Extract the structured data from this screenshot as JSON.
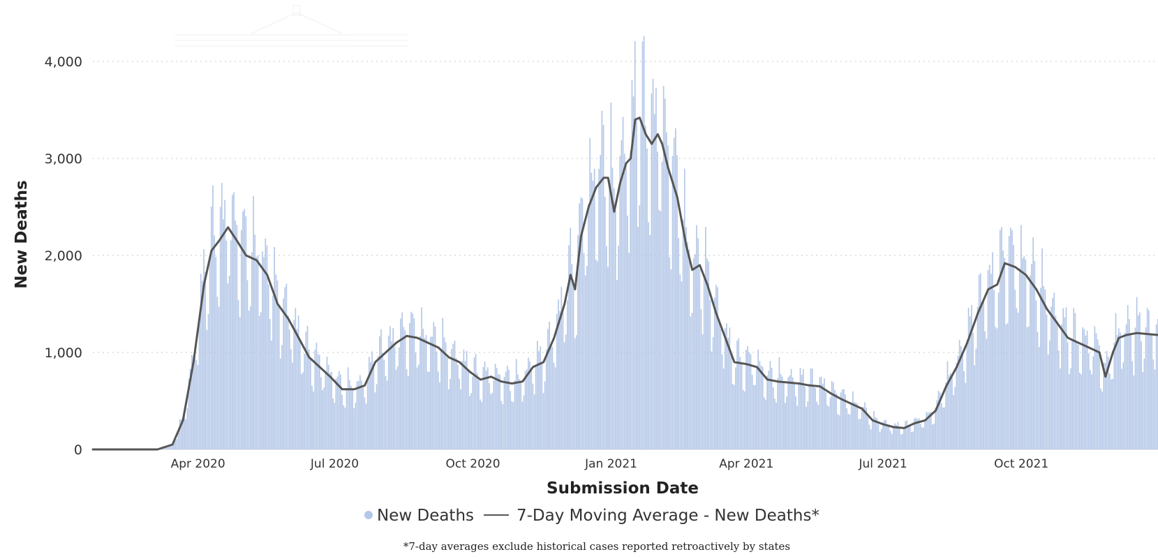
{
  "chart_data": {
    "type": "bar",
    "x_axis_type": "date",
    "xlabel": "Submission Date",
    "ylabel": "New Deaths",
    "ylim": [
      0,
      4000
    ],
    "xlim": [
      "2020-01-22",
      "2021-12-31"
    ],
    "y_ticks": [
      {
        "value": 0,
        "label": "0"
      },
      {
        "value": 1000,
        "label": "1,000"
      },
      {
        "value": 2000,
        "label": "2,000"
      },
      {
        "value": 3000,
        "label": "3,000"
      },
      {
        "value": 4000,
        "label": "4,000"
      }
    ],
    "x_ticks": [
      {
        "date": "2020-04-01",
        "label": "Apr 2020"
      },
      {
        "date": "2020-07-01",
        "label": "Jul 2020"
      },
      {
        "date": "2020-10-01",
        "label": "Oct 2020"
      },
      {
        "date": "2021-01-01",
        "label": "Jan 2021"
      },
      {
        "date": "2021-04-01",
        "label": "Apr 2021"
      },
      {
        "date": "2021-07-01",
        "label": "Jul 2021"
      },
      {
        "date": "2021-10-01",
        "label": "Oct 2021"
      }
    ],
    "grid": "horizontal dotted",
    "legend_position": "bottom",
    "series": [
      {
        "name": "New Deaths",
        "kind": "daily bars",
        "color": "#b4c7e7",
        "values_description": "daily values approximately follow the moving average with weekly oscillation"
      },
      {
        "name": "7-Day Moving Average - New Deaths*",
        "kind": "line",
        "color": "#555555",
        "points": [
          [
            "2020-01-22",
            0
          ],
          [
            "2020-03-05",
            0
          ],
          [
            "2020-03-15",
            50
          ],
          [
            "2020-03-22",
            300
          ],
          [
            "2020-03-29",
            900
          ],
          [
            "2020-04-05",
            1700
          ],
          [
            "2020-04-10",
            2050
          ],
          [
            "2020-04-15",
            2150
          ],
          [
            "2020-04-21",
            2290
          ],
          [
            "2020-04-27",
            2150
          ],
          [
            "2020-05-03",
            2000
          ],
          [
            "2020-05-10",
            1950
          ],
          [
            "2020-05-17",
            1800
          ],
          [
            "2020-05-24",
            1500
          ],
          [
            "2020-05-31",
            1350
          ],
          [
            "2020-06-07",
            1150
          ],
          [
            "2020-06-14",
            950
          ],
          [
            "2020-06-21",
            850
          ],
          [
            "2020-06-28",
            750
          ],
          [
            "2020-07-06",
            620
          ],
          [
            "2020-07-14",
            620
          ],
          [
            "2020-07-21",
            660
          ],
          [
            "2020-07-28",
            900
          ],
          [
            "2020-08-04",
            1000
          ],
          [
            "2020-08-11",
            1100
          ],
          [
            "2020-08-18",
            1170
          ],
          [
            "2020-08-25",
            1150
          ],
          [
            "2020-09-01",
            1100
          ],
          [
            "2020-09-08",
            1050
          ],
          [
            "2020-09-15",
            950
          ],
          [
            "2020-09-22",
            900
          ],
          [
            "2020-09-29",
            800
          ],
          [
            "2020-10-06",
            720
          ],
          [
            "2020-10-13",
            750
          ],
          [
            "2020-10-20",
            700
          ],
          [
            "2020-10-27",
            680
          ],
          [
            "2020-11-03",
            700
          ],
          [
            "2020-11-10",
            850
          ],
          [
            "2020-11-17",
            900
          ],
          [
            "2020-11-24",
            1150
          ],
          [
            "2020-12-01",
            1500
          ],
          [
            "2020-12-05",
            1800
          ],
          [
            "2020-12-08",
            1650
          ],
          [
            "2020-12-12",
            2200
          ],
          [
            "2020-12-17",
            2500
          ],
          [
            "2020-12-22",
            2700
          ],
          [
            "2020-12-27",
            2800
          ],
          [
            "2020-12-30",
            2800
          ],
          [
            "2021-01-03",
            2450
          ],
          [
            "2021-01-07",
            2750
          ],
          [
            "2021-01-11",
            2950
          ],
          [
            "2021-01-14",
            3000
          ],
          [
            "2021-01-17",
            3400
          ],
          [
            "2021-01-20",
            3420
          ],
          [
            "2021-01-24",
            3250
          ],
          [
            "2021-01-28",
            3150
          ],
          [
            "2021-02-01",
            3250
          ],
          [
            "2021-02-04",
            3150
          ],
          [
            "2021-02-08",
            2900
          ],
          [
            "2021-02-14",
            2600
          ],
          [
            "2021-02-20",
            2100
          ],
          [
            "2021-02-24",
            1850
          ],
          [
            "2021-03-01",
            1900
          ],
          [
            "2021-03-06",
            1700
          ],
          [
            "2021-03-12",
            1400
          ],
          [
            "2021-03-18",
            1150
          ],
          [
            "2021-03-24",
            900
          ],
          [
            "2021-04-01",
            880
          ],
          [
            "2021-04-08",
            850
          ],
          [
            "2021-04-15",
            720
          ],
          [
            "2021-04-22",
            700
          ],
          [
            "2021-04-29",
            690
          ],
          [
            "2021-05-06",
            680
          ],
          [
            "2021-05-13",
            660
          ],
          [
            "2021-05-20",
            650
          ],
          [
            "2021-05-27",
            580
          ],
          [
            "2021-06-03",
            520
          ],
          [
            "2021-06-10",
            470
          ],
          [
            "2021-06-17",
            420
          ],
          [
            "2021-06-24",
            300
          ],
          [
            "2021-07-01",
            260
          ],
          [
            "2021-07-08",
            230
          ],
          [
            "2021-07-15",
            220
          ],
          [
            "2021-07-22",
            270
          ],
          [
            "2021-07-29",
            300
          ],
          [
            "2021-08-05",
            400
          ],
          [
            "2021-08-12",
            650
          ],
          [
            "2021-08-19",
            850
          ],
          [
            "2021-08-26",
            1100
          ],
          [
            "2021-09-02",
            1400
          ],
          [
            "2021-09-09",
            1650
          ],
          [
            "2021-09-15",
            1700
          ],
          [
            "2021-09-20",
            1920
          ],
          [
            "2021-09-27",
            1880
          ],
          [
            "2021-10-04",
            1800
          ],
          [
            "2021-10-11",
            1650
          ],
          [
            "2021-10-18",
            1450
          ],
          [
            "2021-10-25",
            1300
          ],
          [
            "2021-11-01",
            1150
          ],
          [
            "2021-11-08",
            1100
          ],
          [
            "2021-11-15",
            1050
          ],
          [
            "2021-11-22",
            1000
          ],
          [
            "2021-11-26",
            750
          ],
          [
            "2021-12-01",
            1000
          ],
          [
            "2021-12-05",
            1150
          ],
          [
            "2021-12-10",
            1180
          ],
          [
            "2021-12-17",
            1200
          ],
          [
            "2021-12-31",
            1180
          ]
        ]
      }
    ]
  },
  "legend": {
    "bars_label": "New Deaths",
    "line_label": "7-Day Moving Average - New Deaths*"
  },
  "footnote": "*7-day averages exclude historical cases reported retroactively by states",
  "colors": {
    "bars": "#b4c7e7",
    "line": "#555555",
    "grid": "#c8c8c8",
    "axis_text": "#333333"
  }
}
